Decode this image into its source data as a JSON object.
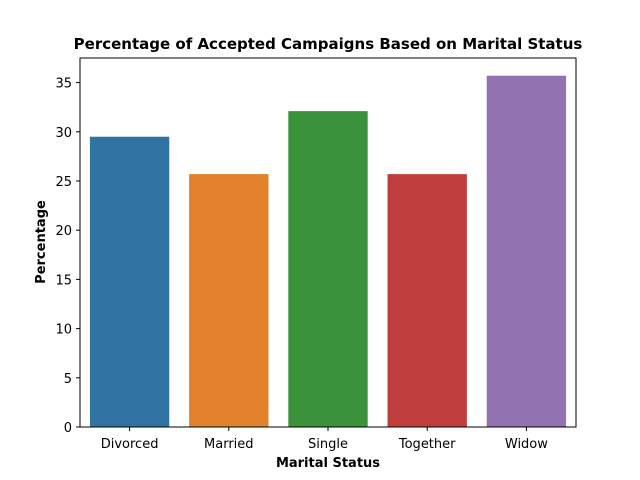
{
  "chart_data": {
    "type": "bar",
    "title": "Percentage of Accepted Campaigns Based on Marital Status",
    "xlabel": "Marital Status",
    "ylabel": "Percentage",
    "categories": [
      "Divorced",
      "Married",
      "Single",
      "Together",
      "Widow"
    ],
    "values": [
      29.5,
      25.7,
      32.1,
      25.7,
      35.7
    ],
    "colors": [
      "#3274a1",
      "#e1812c",
      "#3a923a",
      "#c03d3e",
      "#9372b2"
    ],
    "ylim": [
      0,
      37.5
    ],
    "yticks": [
      0,
      5,
      10,
      15,
      20,
      25,
      30,
      35
    ],
    "grid": false,
    "legend": "none"
  }
}
